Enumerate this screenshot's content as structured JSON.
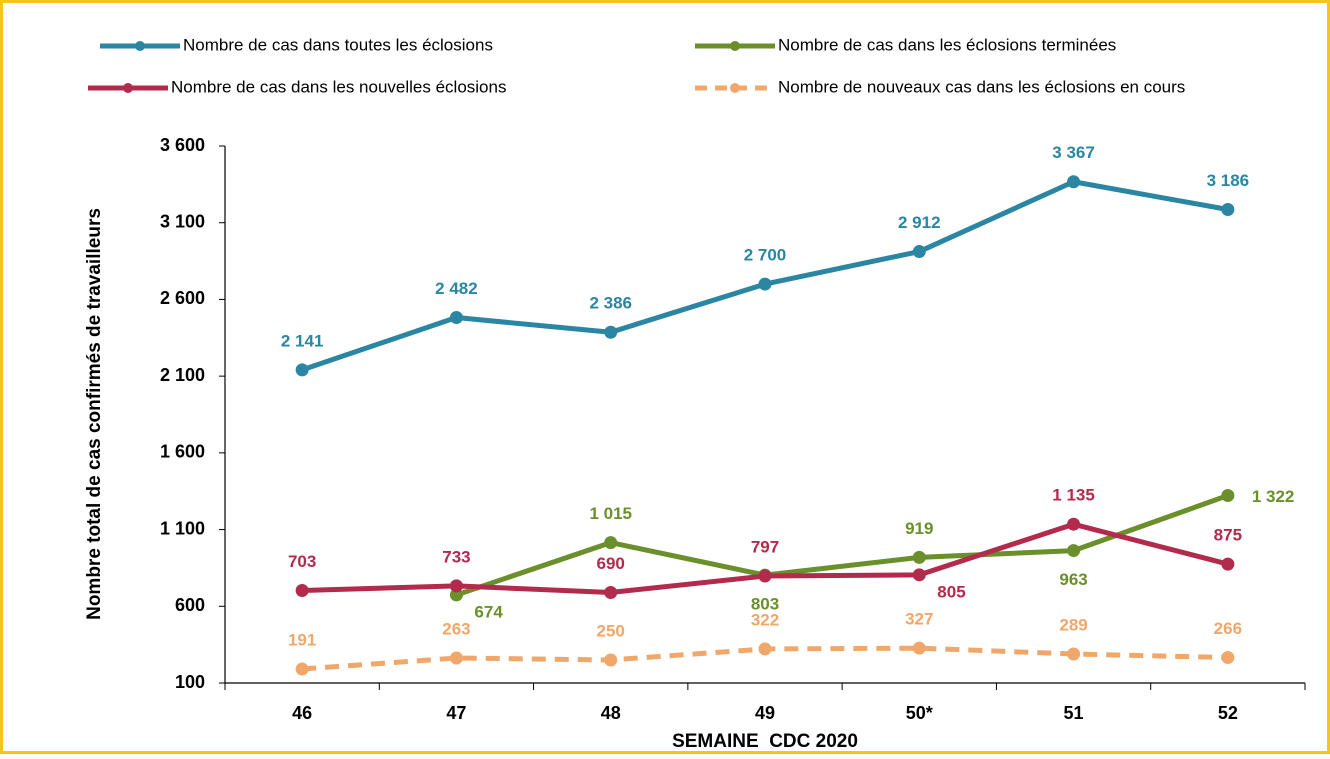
{
  "chart_data": {
    "type": "line",
    "y_axis_label": "Nombre total de cas confirmés de travailleurs",
    "x_axis_label": "SEMAINE  CDC 2020",
    "categories": [
      "46",
      "47",
      "48",
      "49",
      "50*",
      "51",
      "52"
    ],
    "ylim": [
      100,
      3600
    ],
    "yticks": [
      {
        "value": 100,
        "label": "100"
      },
      {
        "value": 600,
        "label": "600"
      },
      {
        "value": 1100,
        "label": "1 100"
      },
      {
        "value": 1600,
        "label": "1 600"
      },
      {
        "value": 2100,
        "label": "2 100"
      },
      {
        "value": 2600,
        "label": "2 600"
      },
      {
        "value": 3100,
        "label": "3 100"
      },
      {
        "value": 3600,
        "label": "3 600"
      }
    ],
    "series": [
      {
        "name": "Nombre de cas dans toutes les éclosions",
        "color": "#2a86a2",
        "dashed": false,
        "values": [
          2141,
          2482,
          2386,
          2700,
          2912,
          3367,
          3186
        ],
        "value_labels": [
          "2 141",
          "2 482",
          "2 386",
          "2 700",
          "2 912",
          "3 367",
          "3 186"
        ]
      },
      {
        "name": "Nombre de cas dans les éclosions terminées",
        "color": "#6a8f2b",
        "dashed": false,
        "values": [
          null,
          674,
          1015,
          803,
          919,
          963,
          1322
        ],
        "value_labels": [
          null,
          "674",
          "1 015",
          "803",
          "919",
          "963",
          "1 322"
        ]
      },
      {
        "name": "Nombre de cas dans les nouvelles éclosions",
        "color": "#b22a4c",
        "dashed": false,
        "values": [
          703,
          733,
          690,
          797,
          805,
          1135,
          875
        ],
        "value_labels": [
          "703",
          "733",
          "690",
          "797",
          "805",
          "1 135",
          "875"
        ]
      },
      {
        "name": "Nombre de nouveaux cas dans les éclosions en cours",
        "color": "#f2a76a",
        "dashed": true,
        "values": [
          191,
          263,
          250,
          322,
          327,
          289,
          266
        ]
      }
    ]
  }
}
